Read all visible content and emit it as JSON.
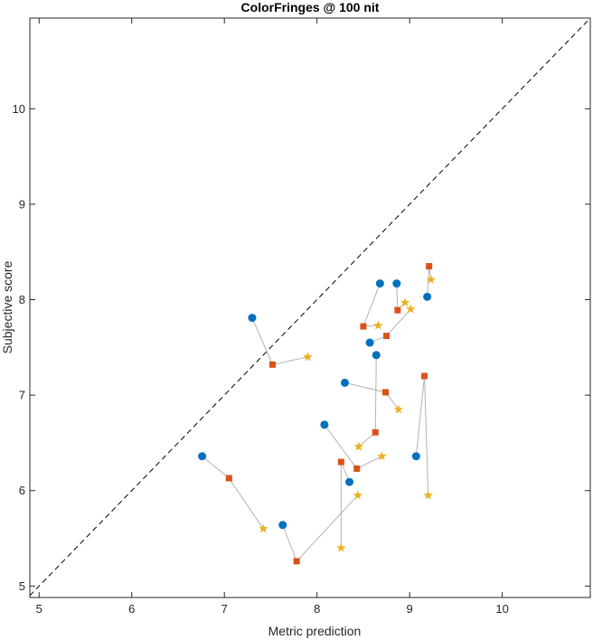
{
  "chart_data": {
    "type": "scatter",
    "title": "ColorFringes @ 100 nit",
    "xlabel": "Metric prediction",
    "ylabel": "Subjective score",
    "xlim": [
      4.9,
      10.95
    ],
    "ylim": [
      4.88,
      10.95
    ],
    "xticks": [
      5,
      6,
      7,
      8,
      9,
      10
    ],
    "yticks": [
      5,
      6,
      7,
      8,
      9,
      10
    ],
    "grid": false,
    "box": true,
    "reference_line": {
      "style": "dashed",
      "color": "#000000",
      "from": [
        4.9,
        4.9
      ],
      "to": [
        10.95,
        10.95
      ]
    },
    "connector_color": "#b3b3b3",
    "series_styles": [
      {
        "marker": "circle",
        "color": "#0072bd"
      },
      {
        "marker": "square",
        "color": "#d95319"
      },
      {
        "marker": "star",
        "color": "#edb120"
      }
    ],
    "groups": [
      {
        "points": [
          [
            7.3,
            7.81
          ],
          [
            7.52,
            7.32
          ],
          [
            7.9,
            7.4
          ]
        ]
      },
      {
        "points": [
          [
            6.76,
            6.36
          ],
          [
            7.05,
            6.13
          ],
          [
            7.42,
            5.6
          ]
        ]
      },
      {
        "points": [
          [
            7.63,
            5.64
          ],
          [
            7.78,
            5.26
          ],
          [
            8.44,
            5.95
          ]
        ]
      },
      {
        "points": [
          [
            8.68,
            8.17
          ],
          [
            8.5,
            7.72
          ],
          [
            8.66,
            7.73
          ]
        ]
      },
      {
        "points": [
          [
            8.86,
            8.17
          ],
          [
            8.87,
            7.89
          ],
          [
            8.95,
            7.97
          ]
        ]
      },
      {
        "points": [
          [
            9.19,
            8.03
          ],
          [
            9.21,
            8.35
          ],
          [
            9.23,
            8.21
          ]
        ]
      },
      {
        "points": [
          [
            8.57,
            7.55
          ],
          [
            8.75,
            7.62
          ],
          [
            9.01,
            7.9
          ]
        ]
      },
      {
        "points": [
          [
            8.64,
            7.42
          ],
          [
            8.63,
            6.61
          ],
          [
            8.45,
            6.46
          ]
        ]
      },
      {
        "points": [
          [
            8.3,
            7.13
          ],
          [
            8.74,
            7.03
          ],
          [
            8.88,
            6.85
          ]
        ]
      },
      {
        "points": [
          [
            8.08,
            6.69
          ],
          [
            8.43,
            6.23
          ],
          [
            8.7,
            6.36
          ]
        ]
      },
      {
        "points": [
          [
            8.35,
            6.09
          ],
          [
            8.26,
            6.3
          ],
          [
            8.26,
            5.4
          ]
        ]
      },
      {
        "points": [
          [
            9.07,
            6.36
          ],
          [
            9.16,
            7.2
          ],
          [
            9.2,
            5.95
          ]
        ]
      }
    ]
  }
}
